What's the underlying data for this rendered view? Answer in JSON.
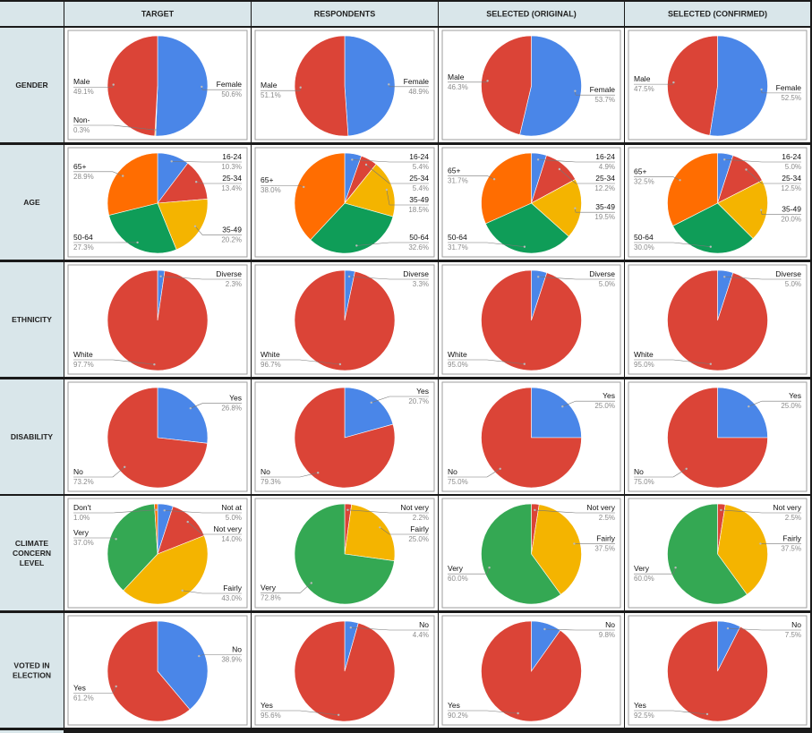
{
  "columns": [
    "TARGET",
    "RESPONDENTS",
    "SELECTED (ORIGINAL)",
    "SELECTED (CONFIRMED)"
  ],
  "colors": {
    "blue": "#4a86e8",
    "red": "#db4437",
    "yellow": "#f4b400",
    "green": "#0f9d58",
    "green_light": "#34a853",
    "orange": "#ff6d01",
    "header_bg": "#d9e6ea",
    "row_bg": "#d9e6ea",
    "grid_line": "#111111",
    "cell_border": "#9e9e9e"
  },
  "rows": [
    {
      "label": [
        "GENDER"
      ]
    },
    {
      "label": [
        "AGE"
      ]
    },
    {
      "label": [
        "ETHNICITY"
      ]
    },
    {
      "label": [
        "DISABILITY"
      ]
    },
    {
      "label": [
        "CLIMATE",
        "CONCERN",
        "LEVEL"
      ]
    },
    {
      "label": [
        "VOTED IN",
        "ELECTION"
      ]
    }
  ],
  "chart_data": [
    {
      "type": "pie",
      "row": "GENDER",
      "column": "TARGET",
      "slices": [
        {
          "label": "Female",
          "value": 50.6,
          "pct": "50.6%",
          "color": "blue"
        },
        {
          "label": "Non-",
          "value": 0.3,
          "pct": "0.3%",
          "color": "yellow"
        },
        {
          "label": "Male",
          "value": 49.1,
          "pct": "49.1%",
          "color": "red"
        }
      ]
    },
    {
      "type": "pie",
      "row": "GENDER",
      "column": "RESPONDENTS",
      "slices": [
        {
          "label": "Female",
          "value": 48.9,
          "pct": "48.9%",
          "color": "blue"
        },
        {
          "label": "Male",
          "value": 51.1,
          "pct": "51.1%",
          "color": "red"
        }
      ]
    },
    {
      "type": "pie",
      "row": "GENDER",
      "column": "SELECTED (ORIGINAL)",
      "slices": [
        {
          "label": "Female",
          "value": 53.7,
          "pct": "53.7%",
          "color": "blue"
        },
        {
          "label": "Male",
          "value": 46.3,
          "pct": "46.3%",
          "color": "red"
        }
      ]
    },
    {
      "type": "pie",
      "row": "GENDER",
      "column": "SELECTED (CONFIRMED)",
      "slices": [
        {
          "label": "Female",
          "value": 52.5,
          "pct": "52.5%",
          "color": "blue"
        },
        {
          "label": "Male",
          "value": 47.5,
          "pct": "47.5%",
          "color": "red"
        }
      ]
    },
    {
      "type": "pie",
      "row": "AGE",
      "column": "TARGET",
      "slices": [
        {
          "label": "16-24",
          "value": 10.3,
          "pct": "10.3%",
          "color": "blue"
        },
        {
          "label": "25-34",
          "value": 13.4,
          "pct": "13.4%",
          "color": "red"
        },
        {
          "label": "35-49",
          "value": 20.2,
          "pct": "20.2%",
          "color": "yellow"
        },
        {
          "label": "50-64",
          "value": 27.3,
          "pct": "27.3%",
          "color": "green"
        },
        {
          "label": "65+",
          "value": 28.9,
          "pct": "28.9%",
          "color": "orange"
        }
      ]
    },
    {
      "type": "pie",
      "row": "AGE",
      "column": "RESPONDENTS",
      "slices": [
        {
          "label": "16-24",
          "value": 5.4,
          "pct": "5.4%",
          "color": "blue"
        },
        {
          "label": "25-34",
          "value": 5.4,
          "pct": "5.4%",
          "color": "red"
        },
        {
          "label": "35-49",
          "value": 18.5,
          "pct": "18.5%",
          "color": "yellow"
        },
        {
          "label": "50-64",
          "value": 32.6,
          "pct": "32.6%",
          "color": "green"
        },
        {
          "label": "65+",
          "value": 38.0,
          "pct": "38.0%",
          "color": "orange"
        }
      ]
    },
    {
      "type": "pie",
      "row": "AGE",
      "column": "SELECTED (ORIGINAL)",
      "slices": [
        {
          "label": "16-24",
          "value": 4.9,
          "pct": "4.9%",
          "color": "blue"
        },
        {
          "label": "25-34",
          "value": 12.2,
          "pct": "12.2%",
          "color": "red"
        },
        {
          "label": "35-49",
          "value": 19.5,
          "pct": "19.5%",
          "color": "yellow"
        },
        {
          "label": "50-64",
          "value": 31.7,
          "pct": "31.7%",
          "color": "green"
        },
        {
          "label": "65+",
          "value": 31.7,
          "pct": "31.7%",
          "color": "orange"
        }
      ]
    },
    {
      "type": "pie",
      "row": "AGE",
      "column": "SELECTED (CONFIRMED)",
      "slices": [
        {
          "label": "16-24",
          "value": 5.0,
          "pct": "5.0%",
          "color": "blue"
        },
        {
          "label": "25-34",
          "value": 12.5,
          "pct": "12.5%",
          "color": "red"
        },
        {
          "label": "35-49",
          "value": 20.0,
          "pct": "20.0%",
          "color": "yellow"
        },
        {
          "label": "50-64",
          "value": 30.0,
          "pct": "30.0%",
          "color": "green"
        },
        {
          "label": "65+",
          "value": 32.5,
          "pct": "32.5%",
          "color": "orange"
        }
      ]
    },
    {
      "type": "pie",
      "row": "ETHNICITY",
      "column": "TARGET",
      "slices": [
        {
          "label": "Diverse",
          "value": 2.3,
          "pct": "2.3%",
          "color": "blue"
        },
        {
          "label": "White",
          "value": 97.7,
          "pct": "97.7%",
          "color": "red"
        }
      ]
    },
    {
      "type": "pie",
      "row": "ETHNICITY",
      "column": "RESPONDENTS",
      "slices": [
        {
          "label": "Diverse",
          "value": 3.3,
          "pct": "3.3%",
          "color": "blue"
        },
        {
          "label": "White",
          "value": 96.7,
          "pct": "96.7%",
          "color": "red"
        }
      ]
    },
    {
      "type": "pie",
      "row": "ETHNICITY",
      "column": "SELECTED (ORIGINAL)",
      "slices": [
        {
          "label": "Diverse",
          "value": 5.0,
          "pct": "5.0%",
          "color": "blue"
        },
        {
          "label": "White",
          "value": 95.0,
          "pct": "95.0%",
          "color": "red"
        }
      ]
    },
    {
      "type": "pie",
      "row": "ETHNICITY",
      "column": "SELECTED (CONFIRMED)",
      "slices": [
        {
          "label": "Diverse",
          "value": 5.0,
          "pct": "5.0%",
          "color": "blue"
        },
        {
          "label": "White",
          "value": 95.0,
          "pct": "95.0%",
          "color": "red"
        }
      ]
    },
    {
      "type": "pie",
      "row": "DISABILITY",
      "column": "TARGET",
      "slices": [
        {
          "label": "Yes",
          "value": 26.8,
          "pct": "26.8%",
          "color": "blue"
        },
        {
          "label": "No",
          "value": 73.2,
          "pct": "73.2%",
          "color": "red"
        }
      ]
    },
    {
      "type": "pie",
      "row": "DISABILITY",
      "column": "RESPONDENTS",
      "slices": [
        {
          "label": "Yes",
          "value": 20.7,
          "pct": "20.7%",
          "color": "blue"
        },
        {
          "label": "No",
          "value": 79.3,
          "pct": "79.3%",
          "color": "red"
        }
      ]
    },
    {
      "type": "pie",
      "row": "DISABILITY",
      "column": "SELECTED (ORIGINAL)",
      "slices": [
        {
          "label": "Yes",
          "value": 25.0,
          "pct": "25.0%",
          "color": "blue"
        },
        {
          "label": "No",
          "value": 75.0,
          "pct": "75.0%",
          "color": "red"
        }
      ]
    },
    {
      "type": "pie",
      "row": "DISABILITY",
      "column": "SELECTED (CONFIRMED)",
      "slices": [
        {
          "label": "Yes",
          "value": 25.0,
          "pct": "25.0%",
          "color": "blue"
        },
        {
          "label": "No",
          "value": 75.0,
          "pct": "75.0%",
          "color": "red"
        }
      ]
    },
    {
      "type": "pie",
      "row": "CLIMATE CONCERN LEVEL",
      "column": "TARGET",
      "slices": [
        {
          "label": "Not at",
          "value": 5.0,
          "pct": "5.0%",
          "color": "blue"
        },
        {
          "label": "Not very",
          "value": 14.0,
          "pct": "14.0%",
          "color": "red"
        },
        {
          "label": "Fairly",
          "value": 43.0,
          "pct": "43.0%",
          "color": "yellow"
        },
        {
          "label": "Very",
          "value": 37.0,
          "pct": "37.0%",
          "color": "green_light"
        },
        {
          "label": "Don't",
          "value": 1.0,
          "pct": "1.0%",
          "color": "orange"
        }
      ]
    },
    {
      "type": "pie",
      "row": "CLIMATE CONCERN LEVEL",
      "column": "RESPONDENTS",
      "slices": [
        {
          "label": "Not very",
          "value": 2.2,
          "pct": "2.2%",
          "color": "red"
        },
        {
          "label": "Fairly",
          "value": 25.0,
          "pct": "25.0%",
          "color": "yellow"
        },
        {
          "label": "Very",
          "value": 72.8,
          "pct": "72.8%",
          "color": "green_light"
        }
      ]
    },
    {
      "type": "pie",
      "row": "CLIMATE CONCERN LEVEL",
      "column": "SELECTED (ORIGINAL)",
      "slices": [
        {
          "label": "Not very",
          "value": 2.5,
          "pct": "2.5%",
          "color": "red"
        },
        {
          "label": "Fairly",
          "value": 37.5,
          "pct": "37.5%",
          "color": "yellow"
        },
        {
          "label": "Very",
          "value": 60.0,
          "pct": "60.0%",
          "color": "green_light"
        }
      ]
    },
    {
      "type": "pie",
      "row": "CLIMATE CONCERN LEVEL",
      "column": "SELECTED (CONFIRMED)",
      "slices": [
        {
          "label": "Not very",
          "value": 2.5,
          "pct": "2.5%",
          "color": "red"
        },
        {
          "label": "Fairly",
          "value": 37.5,
          "pct": "37.5%",
          "color": "yellow"
        },
        {
          "label": "Very",
          "value": 60.0,
          "pct": "60.0%",
          "color": "green_light"
        }
      ]
    },
    {
      "type": "pie",
      "row": "VOTED IN ELECTION",
      "column": "TARGET",
      "slices": [
        {
          "label": "No",
          "value": 38.9,
          "pct": "38.9%",
          "color": "blue"
        },
        {
          "label": "Yes",
          "value": 61.2,
          "pct": "61.2%",
          "color": "red"
        }
      ]
    },
    {
      "type": "pie",
      "row": "VOTED IN ELECTION",
      "column": "RESPONDENTS",
      "slices": [
        {
          "label": "No",
          "value": 4.4,
          "pct": "4.4%",
          "color": "blue"
        },
        {
          "label": "Yes",
          "value": 95.6,
          "pct": "95.6%",
          "color": "red"
        }
      ]
    },
    {
      "type": "pie",
      "row": "VOTED IN ELECTION",
      "column": "SELECTED (ORIGINAL)",
      "slices": [
        {
          "label": "No",
          "value": 9.8,
          "pct": "9.8%",
          "color": "blue"
        },
        {
          "label": "Yes",
          "value": 90.2,
          "pct": "90.2%",
          "color": "red"
        }
      ]
    },
    {
      "type": "pie",
      "row": "VOTED IN ELECTION",
      "column": "SELECTED (CONFIRMED)",
      "slices": [
        {
          "label": "No",
          "value": 7.5,
          "pct": "7.5%",
          "color": "blue"
        },
        {
          "label": "Yes",
          "value": 92.5,
          "pct": "92.5%",
          "color": "red"
        }
      ]
    }
  ]
}
